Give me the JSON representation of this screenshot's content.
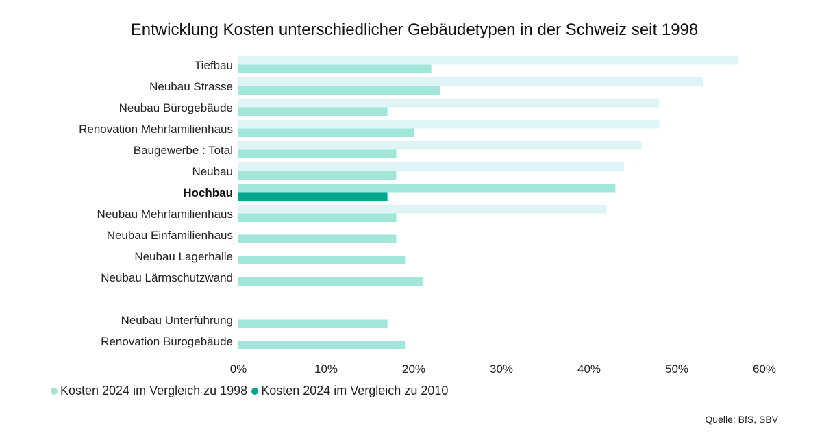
{
  "chart_data": {
    "type": "bar",
    "orientation": "horizontal",
    "title": "Entwicklung Kosten unterschiedlicher Gebäudetypen in der Schweiz seit 1998",
    "categories": [
      "Tiefbau",
      "Neubau Strasse",
      "Neubau Bürogebäude",
      "Renovation Mehrfamilienhaus",
      "Baugewerbe : Total",
      "Neubau",
      "Hochbau",
      "Neubau Mehrfamilienhaus",
      "Neubau Einfamilienhaus",
      "Neubau Lagerhalle",
      "Neubau Lärmschutzwand",
      "",
      "Neubau Unterführung",
      "Renovation Bürogebäude"
    ],
    "highlighted_category": "Hochbau",
    "series": [
      {
        "name": "Kosten 2024 im Vergleich zu 1998",
        "color": "#dff4f5",
        "highlight_color": "#a1e6d9",
        "values": [
          57,
          53,
          48,
          48,
          46,
          44,
          43,
          42,
          null,
          null,
          null,
          null,
          null,
          null
        ]
      },
      {
        "name": "Kosten 2024 im Vergleich zu 2010",
        "color": "#a1e6d9",
        "highlight_color": "#00a78b",
        "values": [
          22,
          23,
          17,
          20,
          18,
          18,
          17,
          18,
          18,
          19,
          21,
          null,
          17,
          19
        ]
      }
    ],
    "x_ticks": [
      "0%",
      "10%",
      "20%",
      "30%",
      "40%",
      "50%",
      "60%"
    ],
    "xlim": [
      0,
      60
    ],
    "unit": "%",
    "legend_position": "bottom-left",
    "grid": false
  },
  "legend": {
    "items": [
      {
        "label": "Kosten 2024 im Vergleich zu 1998",
        "color": "#a1e6d9"
      },
      {
        "label": "Kosten 2024 im Vergleich zu 2010",
        "color": "#00a78b"
      }
    ]
  },
  "source": "Quelle: BfS, SBV"
}
